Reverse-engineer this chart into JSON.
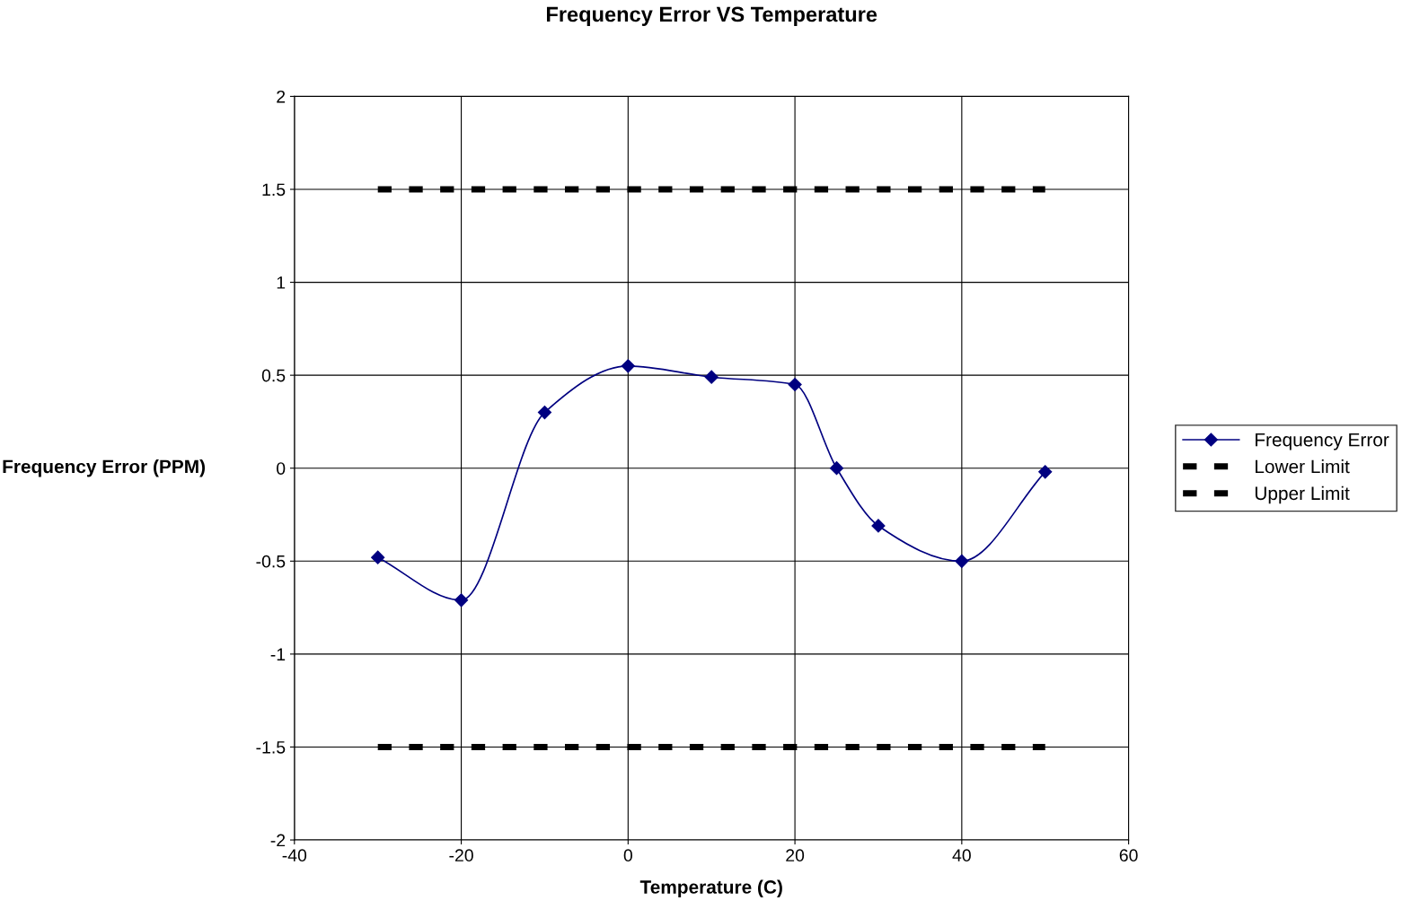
{
  "chart_data": {
    "type": "line",
    "title": "Frequency Error VS Temperature",
    "xlabel": "Temperature (C)",
    "ylabel": "Frequency Error (PPM)",
    "xlim": [
      -40,
      60
    ],
    "xticks": [
      -40,
      -20,
      0,
      20,
      40,
      60
    ],
    "ylim": [
      -2,
      2
    ],
    "yticks": [
      -2,
      -1.5,
      -1,
      -0.5,
      0,
      0.5,
      1,
      1.5,
      2
    ],
    "grid": true,
    "legend": "right",
    "series": [
      {
        "name": "Frequency Error",
        "color": "#000080",
        "marker": "diamond",
        "line_style": "solid",
        "x": [
          -30,
          -20,
          -10,
          0,
          10,
          20,
          25,
          30,
          40,
          50
        ],
        "values": [
          -0.48,
          -0.71,
          0.3,
          0.55,
          0.49,
          0.45,
          0.0,
          -0.31,
          -0.5,
          -0.02
        ]
      },
      {
        "name": "Lower Limit",
        "color": "#000000",
        "marker": "none",
        "line_style": "dashed",
        "x": [
          -30,
          -20,
          -10,
          0,
          10,
          20,
          30,
          40,
          50
        ],
        "values": [
          -1.5,
          -1.5,
          -1.5,
          -1.5,
          -1.5,
          -1.5,
          -1.5,
          -1.5,
          -1.5
        ]
      },
      {
        "name": "Upper Limit",
        "color": "#000000",
        "marker": "none",
        "line_style": "dashed",
        "x": [
          -30,
          -20,
          -10,
          0,
          10,
          20,
          30,
          40,
          50
        ],
        "values": [
          1.5,
          1.5,
          1.5,
          1.5,
          1.5,
          1.5,
          1.5,
          1.5,
          1.5
        ]
      }
    ]
  }
}
